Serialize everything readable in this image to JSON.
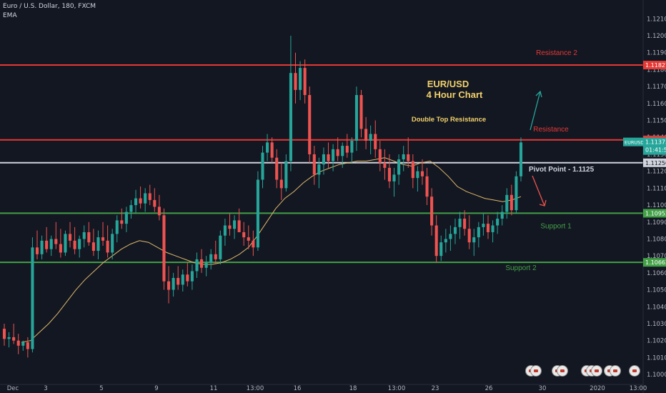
{
  "header": {
    "symbol_line": "Euro / U.S. Dollar, 180, FXCM",
    "indicator": "EMA"
  },
  "chart_data": {
    "type": "candlestick",
    "ylim": [
      1.09975,
      1.1219
    ],
    "y_ticks": [
      "1.12100",
      "1.12000",
      "1.11900",
      "1.11800",
      "1.11700",
      "1.11600",
      "1.11500",
      "1.11400",
      "1.11300",
      "1.11200",
      "1.11100",
      "1.11000",
      "1.10900",
      "1.10800",
      "1.10700",
      "1.10600",
      "1.10500",
      "1.10400",
      "1.10300",
      "1.10200",
      "1.10100",
      "1.10000"
    ],
    "x_ticks": [
      "Dec",
      "3",
      "5",
      "9",
      "11",
      "13:00",
      "16",
      "18",
      "13:00",
      "23",
      "26",
      "30",
      "2020",
      "13:00"
    ],
    "levels": [
      {
        "label": "Resistance 2",
        "value": 1.11827,
        "tag": "1.11827",
        "color": "#e53935"
      },
      {
        "label": "Resistance",
        "value": 1.11385,
        "tag": "1.11385",
        "color": "#e53935"
      },
      {
        "label": "Pivot Point - 1.1125",
        "value": 1.1125,
        "tag": "1.11250",
        "color": "#d1d4dc"
      },
      {
        "label": "Support 1",
        "value": 1.10952,
        "tag": "1.10952",
        "color": "#43a047"
      },
      {
        "label": "Support 2",
        "value": 1.10662,
        "tag": "1.10662",
        "color": "#43a047"
      }
    ],
    "price_tag": {
      "symbol": "EURUSD",
      "value": "1.11373",
      "countdown": "01:41:51"
    },
    "annotations": {
      "title_line1": "EUR/USD",
      "title_line2": "4 Hour Chart",
      "note": "Double Top Resistance"
    },
    "colors": {
      "up": "#26a69a",
      "down": "#ef5350",
      "ema": "#e0b96a",
      "bg": "#131722"
    },
    "candles": [
      [
        1.1027,
        1.103,
        1.1017,
        1.1021
      ],
      [
        1.1021,
        1.1025,
        1.1016,
        1.1022
      ],
      [
        1.1022,
        1.103,
        1.1018,
        1.102
      ],
      [
        1.102,
        1.1024,
        1.1012,
        1.1017
      ],
      [
        1.1017,
        1.102,
        1.1014,
        1.1019
      ],
      [
        1.1019,
        1.1022,
        1.101,
        1.1015
      ],
      [
        1.1015,
        1.1081,
        1.1013,
        1.1075
      ],
      [
        1.1075,
        1.1085,
        1.1068,
        1.1071
      ],
      [
        1.1071,
        1.1082,
        1.1068,
        1.1079
      ],
      [
        1.1079,
        1.1087,
        1.1072,
        1.1074
      ],
      [
        1.1074,
        1.1082,
        1.107,
        1.108
      ],
      [
        1.108,
        1.109,
        1.1074,
        1.1077
      ],
      [
        1.1077,
        1.1086,
        1.1069,
        1.1072
      ],
      [
        1.1072,
        1.1085,
        1.107,
        1.1083
      ],
      [
        1.1083,
        1.109,
        1.1075,
        1.1079
      ],
      [
        1.1079,
        1.1087,
        1.1071,
        1.1074
      ],
      [
        1.1074,
        1.1082,
        1.1069,
        1.108
      ],
      [
        1.108,
        1.1088,
        1.1075,
        1.1084
      ],
      [
        1.1084,
        1.109,
        1.1076,
        1.1078
      ],
      [
        1.1078,
        1.1086,
        1.107,
        1.1073
      ],
      [
        1.1073,
        1.1085,
        1.1068,
        1.1081
      ],
      [
        1.1081,
        1.109,
        1.1076,
        1.1079
      ],
      [
        1.1079,
        1.1088,
        1.1069,
        1.1072
      ],
      [
        1.1072,
        1.1086,
        1.1068,
        1.1083
      ],
      [
        1.1083,
        1.1094,
        1.1078,
        1.1091
      ],
      [
        1.1091,
        1.1098,
        1.1086,
        1.1089
      ],
      [
        1.1089,
        1.1099,
        1.1084,
        1.1096
      ],
      [
        1.1096,
        1.1103,
        1.1092,
        1.11
      ],
      [
        1.11,
        1.1109,
        1.1095,
        1.1104
      ],
      [
        1.1104,
        1.1111,
        1.1098,
        1.1101
      ],
      [
        1.1101,
        1.111,
        1.1096,
        1.1107
      ],
      [
        1.1107,
        1.1112,
        1.11,
        1.1103
      ],
      [
        1.1103,
        1.111,
        1.1096,
        1.1099
      ],
      [
        1.1099,
        1.1106,
        1.1091,
        1.1094
      ],
      [
        1.1094,
        1.1098,
        1.105,
        1.1055
      ],
      [
        1.1055,
        1.1064,
        1.1042,
        1.105
      ],
      [
        1.105,
        1.106,
        1.1046,
        1.1057
      ],
      [
        1.1057,
        1.1064,
        1.105,
        1.1053
      ],
      [
        1.1053,
        1.1062,
        1.1049,
        1.1059
      ],
      [
        1.1059,
        1.1066,
        1.1052,
        1.1055
      ],
      [
        1.1055,
        1.1065,
        1.105,
        1.1061
      ],
      [
        1.1061,
        1.1072,
        1.1057,
        1.1068
      ],
      [
        1.1068,
        1.1074,
        1.106,
        1.1063
      ],
      [
        1.1063,
        1.107,
        1.1058,
        1.1066
      ],
      [
        1.1066,
        1.1074,
        1.1062,
        1.1071
      ],
      [
        1.1071,
        1.1079,
        1.1065,
        1.1068
      ],
      [
        1.1068,
        1.1085,
        1.1065,
        1.1082
      ],
      [
        1.1082,
        1.1092,
        1.1076,
        1.1088
      ],
      [
        1.1088,
        1.1095,
        1.1082,
        1.1086
      ],
      [
        1.1086,
        1.1094,
        1.108,
        1.1091
      ],
      [
        1.1091,
        1.1098,
        1.1085,
        1.1084
      ],
      [
        1.1084,
        1.109,
        1.1076,
        1.1081
      ],
      [
        1.1081,
        1.1088,
        1.1074,
        1.1079
      ],
      [
        1.1079,
        1.1085,
        1.107,
        1.1075
      ],
      [
        1.1075,
        1.112,
        1.1073,
        1.1115
      ],
      [
        1.1115,
        1.1135,
        1.111,
        1.1131
      ],
      [
        1.1131,
        1.1142,
        1.1126,
        1.1137
      ],
      [
        1.1137,
        1.114,
        1.1125,
        1.1128
      ],
      [
        1.1128,
        1.1133,
        1.111,
        1.1115
      ],
      [
        1.1115,
        1.1125,
        1.1103,
        1.111
      ],
      [
        1.111,
        1.113,
        1.1108,
        1.1126
      ],
      [
        1.1126,
        1.12,
        1.112,
        1.1178
      ],
      [
        1.1178,
        1.119,
        1.116,
        1.1168
      ],
      [
        1.1168,
        1.1185,
        1.1162,
        1.1181
      ],
      [
        1.1181,
        1.1186,
        1.116,
        1.1165
      ],
      [
        1.1165,
        1.117,
        1.1125,
        1.113
      ],
      [
        1.113,
        1.1135,
        1.1112,
        1.1118
      ],
      [
        1.1118,
        1.1128,
        1.111,
        1.1124
      ],
      [
        1.1124,
        1.1134,
        1.1118,
        1.113
      ],
      [
        1.113,
        1.1137,
        1.1122,
        1.1126
      ],
      [
        1.1126,
        1.1136,
        1.112,
        1.1133
      ],
      [
        1.1133,
        1.114,
        1.1126,
        1.1129
      ],
      [
        1.1129,
        1.1137,
        1.1122,
        1.1135
      ],
      [
        1.1135,
        1.1142,
        1.1128,
        1.1131
      ],
      [
        1.1131,
        1.114,
        1.1125,
        1.1138
      ],
      [
        1.1138,
        1.117,
        1.1132,
        1.1165
      ],
      [
        1.1165,
        1.1168,
        1.114,
        1.1145
      ],
      [
        1.1145,
        1.1152,
        1.1133,
        1.1138
      ],
      [
        1.1138,
        1.1147,
        1.113,
        1.1142
      ],
      [
        1.1142,
        1.115,
        1.1128,
        1.1133
      ],
      [
        1.1133,
        1.1138,
        1.112,
        1.1125
      ],
      [
        1.1125,
        1.1133,
        1.1115,
        1.1122
      ],
      [
        1.1122,
        1.113,
        1.111,
        1.1114
      ],
      [
        1.1114,
        1.1122,
        1.1105,
        1.1118
      ],
      [
        1.1118,
        1.113,
        1.1112,
        1.1127
      ],
      [
        1.1127,
        1.1135,
        1.112,
        1.113
      ],
      [
        1.113,
        1.114,
        1.1122,
        1.1126
      ],
      [
        1.1126,
        1.113,
        1.111,
        1.1116
      ],
      [
        1.1116,
        1.1123,
        1.1108,
        1.112
      ],
      [
        1.112,
        1.1127,
        1.1112,
        1.1117
      ],
      [
        1.1117,
        1.1122,
        1.11,
        1.1105
      ],
      [
        1.1105,
        1.111,
        1.1082,
        1.1088
      ],
      [
        1.1088,
        1.1094,
        1.1066,
        1.107
      ],
      [
        1.107,
        1.1082,
        1.1067,
        1.1078
      ],
      [
        1.1078,
        1.1086,
        1.1072,
        1.108
      ],
      [
        1.108,
        1.1088,
        1.1073,
        1.1083
      ],
      [
        1.1083,
        1.1092,
        1.1077,
        1.1087
      ],
      [
        1.1087,
        1.1096,
        1.108,
        1.1092
      ],
      [
        1.1092,
        1.1097,
        1.1082,
        1.1086
      ],
      [
        1.1086,
        1.1094,
        1.1074,
        1.1078
      ],
      [
        1.1078,
        1.1086,
        1.107,
        1.1081
      ],
      [
        1.1081,
        1.109,
        1.1075,
        1.1087
      ],
      [
        1.1087,
        1.1095,
        1.1082,
        1.1089
      ],
      [
        1.1089,
        1.1094,
        1.108,
        1.1084
      ],
      [
        1.1084,
        1.1091,
        1.1078,
        1.1088
      ],
      [
        1.1088,
        1.1096,
        1.1083,
        1.1092
      ],
      [
        1.1092,
        1.11,
        1.1088,
        1.1096
      ],
      [
        1.1096,
        1.111,
        1.1092,
        1.1106
      ],
      [
        1.1106,
        1.1112,
        1.1094,
        1.1097
      ],
      [
        1.1097,
        1.112,
        1.1095,
        1.1117
      ],
      [
        1.1117,
        1.114,
        1.1114,
        1.1137
      ]
    ],
    "ema": [
      1.1019,
      1.102,
      1.1025,
      1.103,
      1.1036,
      1.1043,
      1.105,
      1.1056,
      1.1061,
      1.1066,
      1.107,
      1.1074,
      1.1077,
      1.1079,
      1.1078,
      1.1075,
      1.1072,
      1.107,
      1.1068,
      1.1066,
      1.1065,
      1.1065,
      1.1066,
      1.1068,
      1.1071,
      1.1075,
      1.1082,
      1.109,
      1.1098,
      1.1104,
      1.1108,
      1.1113,
      1.1117,
      1.112,
      1.1122,
      1.1124,
      1.1125,
      1.1126,
      1.1126,
      1.1127,
      1.1128,
      1.1126,
      1.1124,
      1.1123,
      1.1125,
      1.1126,
      1.1122,
      1.1117,
      1.1111,
      1.1108,
      1.1106,
      1.1104,
      1.1103,
      1.1102,
      1.1103,
      1.1105
    ]
  },
  "event_icons": [
    "event-flag-icon",
    "event-flag-icon",
    "event-flag-icon",
    "event-flag-icon",
    "event-flag-icon",
    "event-flag-icon",
    "event-flag-icon"
  ]
}
